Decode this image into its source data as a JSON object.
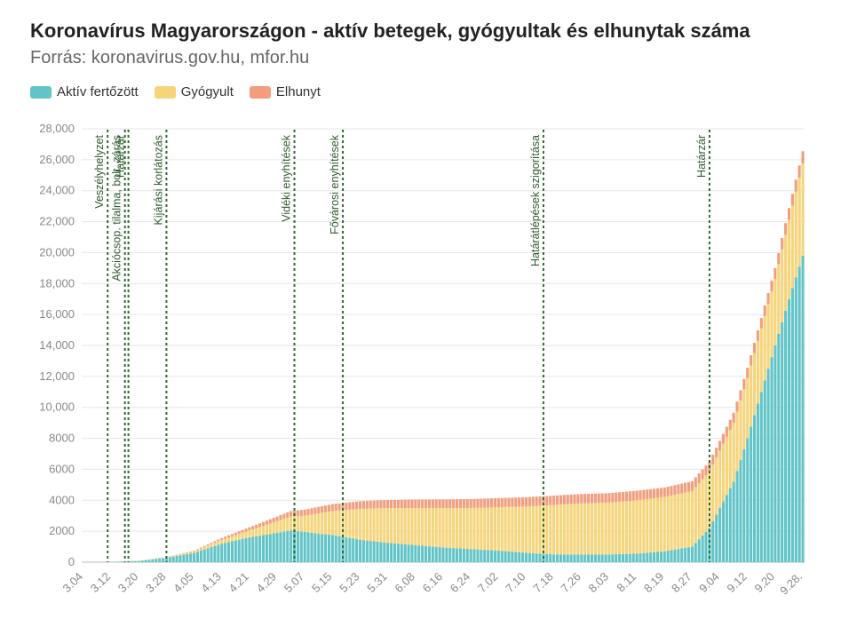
{
  "title": "Koronavírus Magyarországon - aktív betegek, gyógyultak és elhunytak száma",
  "subtitle": "Forrás: koronavirus.gov.hu, mfor.hu",
  "colors": {
    "active": "#62c4c7",
    "recovered": "#f5d47a",
    "deceased": "#f29d7d",
    "event": "#2e6b2e"
  },
  "chart_data": {
    "type": "bar",
    "stacked": true,
    "title": "Koronavírus Magyarországon - aktív betegek, gyógyultak és elhunytak száma",
    "legend": [
      "Aktív fertőzött",
      "Gyógyult",
      "Elhunyt"
    ],
    "legend_position": "top-left",
    "grid": true,
    "ylim": [
      0,
      28000
    ],
    "y_ticks": [
      "0",
      "2000",
      "4000",
      "6000",
      "8000",
      "10,000",
      "12,000",
      "14,000",
      "16,000",
      "18,000",
      "20,000",
      "22,000",
      "24,000",
      "26,000",
      "28,000"
    ],
    "x_ticks": [
      "3.04",
      "3.12",
      "3.20",
      "3.28",
      "4.05",
      "4.13",
      "4.21",
      "4.29",
      "5.07",
      "5.15",
      "5.23",
      "5.31",
      "6.08",
      "6.16",
      "6.24",
      "7.02",
      "7.10",
      "7.18",
      "7.26",
      "8.03",
      "8.11",
      "8.19",
      "8.27",
      "9.04",
      "9.12",
      "9.20",
      "9.28."
    ],
    "x_start": "3.04",
    "x_end": "9.28.",
    "series_keypoints": {
      "active": [
        [
          "3.04",
          0
        ],
        [
          "3.12",
          10
        ],
        [
          "3.20",
          80
        ],
        [
          "3.28",
          280
        ],
        [
          "4.05",
          600
        ],
        [
          "4.13",
          1200
        ],
        [
          "4.21",
          1600
        ],
        [
          "4.29",
          1900
        ],
        [
          "5.03",
          2050
        ],
        [
          "5.07",
          1950
        ],
        [
          "5.15",
          1750
        ],
        [
          "5.23",
          1450
        ],
        [
          "5.31",
          1250
        ],
        [
          "6.08",
          1100
        ],
        [
          "6.16",
          950
        ],
        [
          "6.24",
          850
        ],
        [
          "7.02",
          750
        ],
        [
          "7.10",
          600
        ],
        [
          "7.18",
          500
        ],
        [
          "7.26",
          500
        ],
        [
          "8.03",
          500
        ],
        [
          "8.11",
          550
        ],
        [
          "8.19",
          700
        ],
        [
          "8.27",
          1000
        ],
        [
          "9.01",
          2200
        ],
        [
          "9.04",
          3500
        ],
        [
          "9.08",
          5200
        ],
        [
          "9.12",
          8000
        ],
        [
          "9.16",
          11000
        ],
        [
          "9.20",
          14000
        ],
        [
          "9.24",
          17000
        ],
        [
          "9.28",
          19800
        ]
      ],
      "recovered": [
        [
          "3.04",
          0
        ],
        [
          "3.20",
          10
        ],
        [
          "3.28",
          40
        ],
        [
          "4.05",
          100
        ],
        [
          "4.13",
          250
        ],
        [
          "4.21",
          450
        ],
        [
          "4.29",
          750
        ],
        [
          "5.07",
          1050
        ],
        [
          "5.15",
          1550
        ],
        [
          "5.23",
          2000
        ],
        [
          "5.31",
          2250
        ],
        [
          "6.08",
          2400
        ],
        [
          "6.16",
          2550
        ],
        [
          "6.24",
          2650
        ],
        [
          "7.02",
          2800
        ],
        [
          "7.10",
          3000
        ],
        [
          "7.18",
          3200
        ],
        [
          "7.26",
          3300
        ],
        [
          "8.03",
          3350
        ],
        [
          "8.11",
          3450
        ],
        [
          "8.19",
          3500
        ],
        [
          "8.27",
          3600
        ],
        [
          "9.04",
          3700
        ],
        [
          "9.12",
          3900
        ],
        [
          "9.20",
          4300
        ],
        [
          "9.28",
          5950
        ]
      ],
      "deceased": [
        [
          "3.04",
          0
        ],
        [
          "3.20",
          5
        ],
        [
          "3.28",
          15
        ],
        [
          "4.05",
          40
        ],
        [
          "4.13",
          110
        ],
        [
          "4.21",
          200
        ],
        [
          "4.29",
          300
        ],
        [
          "5.07",
          400
        ],
        [
          "5.15",
          450
        ],
        [
          "5.23",
          490
        ],
        [
          "5.31",
          520
        ],
        [
          "6.08",
          550
        ],
        [
          "6.16",
          560
        ],
        [
          "6.24",
          580
        ],
        [
          "7.02",
          590
        ],
        [
          "7.10",
          595
        ],
        [
          "7.18",
          600
        ],
        [
          "7.26",
          605
        ],
        [
          "8.03",
          610
        ],
        [
          "8.11",
          615
        ],
        [
          "8.19",
          620
        ],
        [
          "8.27",
          630
        ],
        [
          "9.04",
          640
        ],
        [
          "9.12",
          660
        ],
        [
          "9.20",
          700
        ],
        [
          "9.28",
          800
        ]
      ]
    },
    "annotations": [
      {
        "date": "3.11",
        "label": "Veszélyhelyzet"
      },
      {
        "date": "3.16",
        "label": "Akciócsop. tilalma, bolt. zárás"
      },
      {
        "date": "3.17",
        "label": "Határzár"
      },
      {
        "date": "3.28",
        "label": "Kijárási korlátozás"
      },
      {
        "date": "5.04",
        "label": "Vidéki enyhítések"
      },
      {
        "date": "5.18",
        "label": "Fővárosi enyhítések"
      },
      {
        "date": "7.15",
        "label": "Határátlépések szigorítása"
      },
      {
        "date": "9.01",
        "label": "Határzár"
      }
    ]
  }
}
